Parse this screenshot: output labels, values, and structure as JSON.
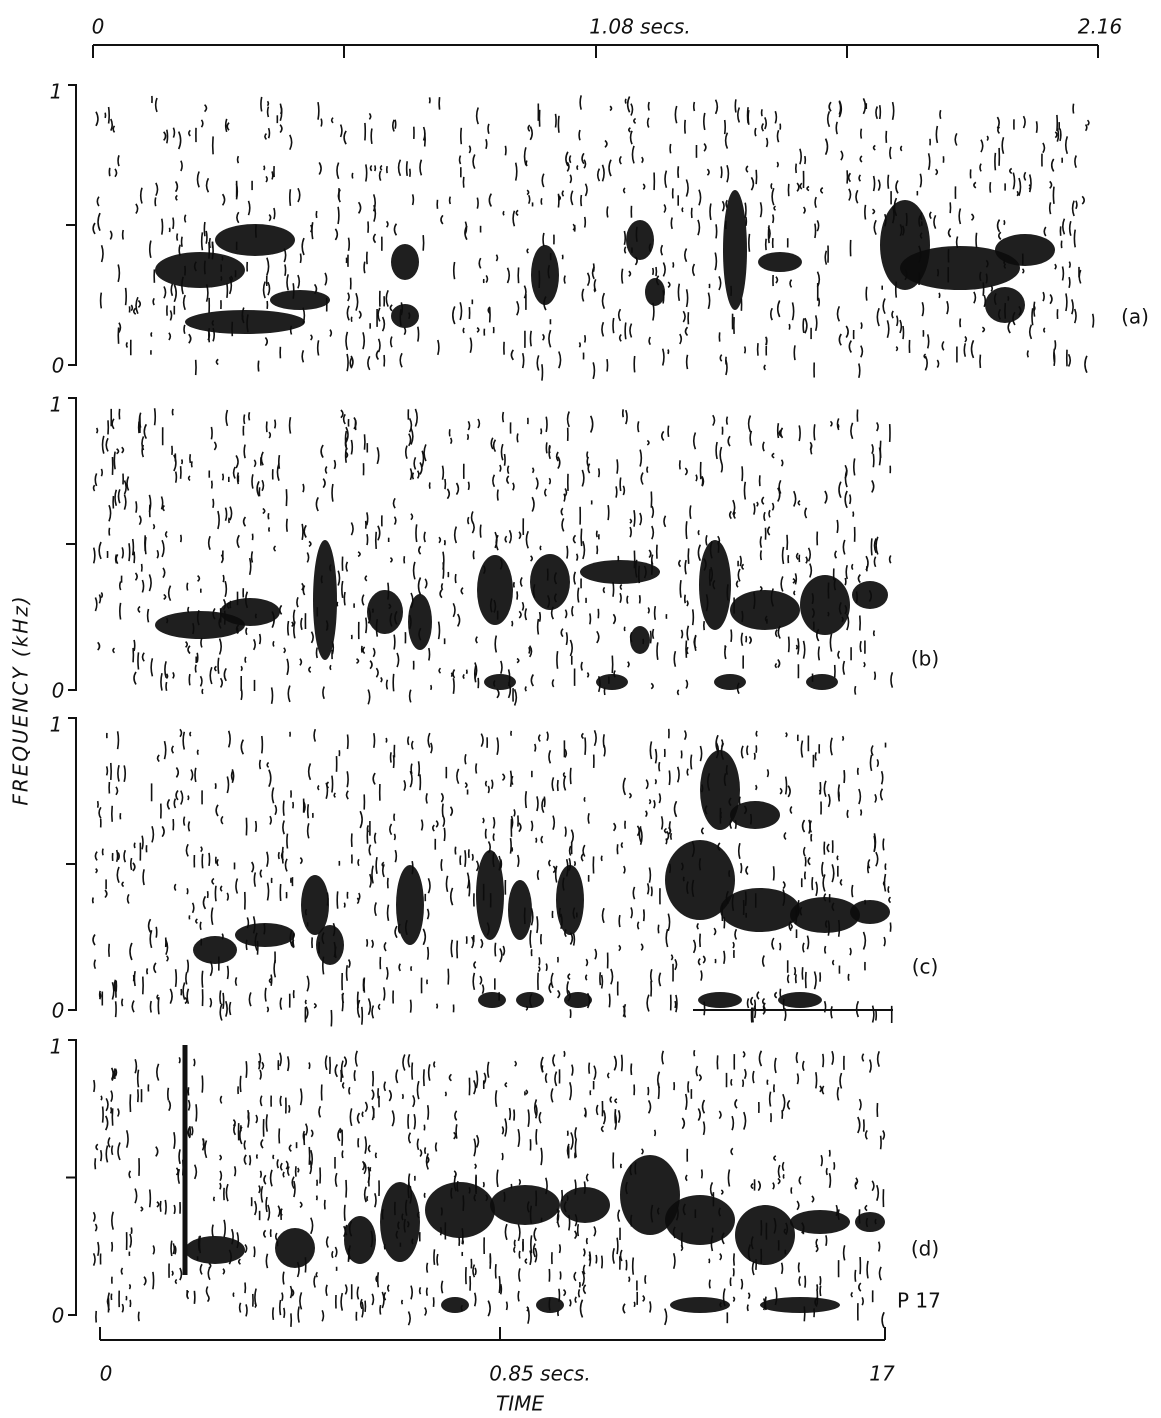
{
  "top_axis": {
    "labels": [
      "0",
      "1.08 secs.",
      "2.16"
    ]
  },
  "y_axis_title": "FREQUENCY (kHz)",
  "panels": [
    {
      "label": "(a)",
      "ticks": [
        "1",
        "0"
      ]
    },
    {
      "label": "(b)",
      "ticks": [
        "1",
        "0"
      ]
    },
    {
      "label": "(c)",
      "ticks": [
        "1",
        "0"
      ]
    },
    {
      "label": "(d)",
      "ticks": [
        "1",
        "0"
      ],
      "note": "P 17"
    }
  ],
  "bottom_axis": {
    "labels": [
      "0",
      "0.85 secs.",
      "17"
    ],
    "title": "TIME"
  }
}
